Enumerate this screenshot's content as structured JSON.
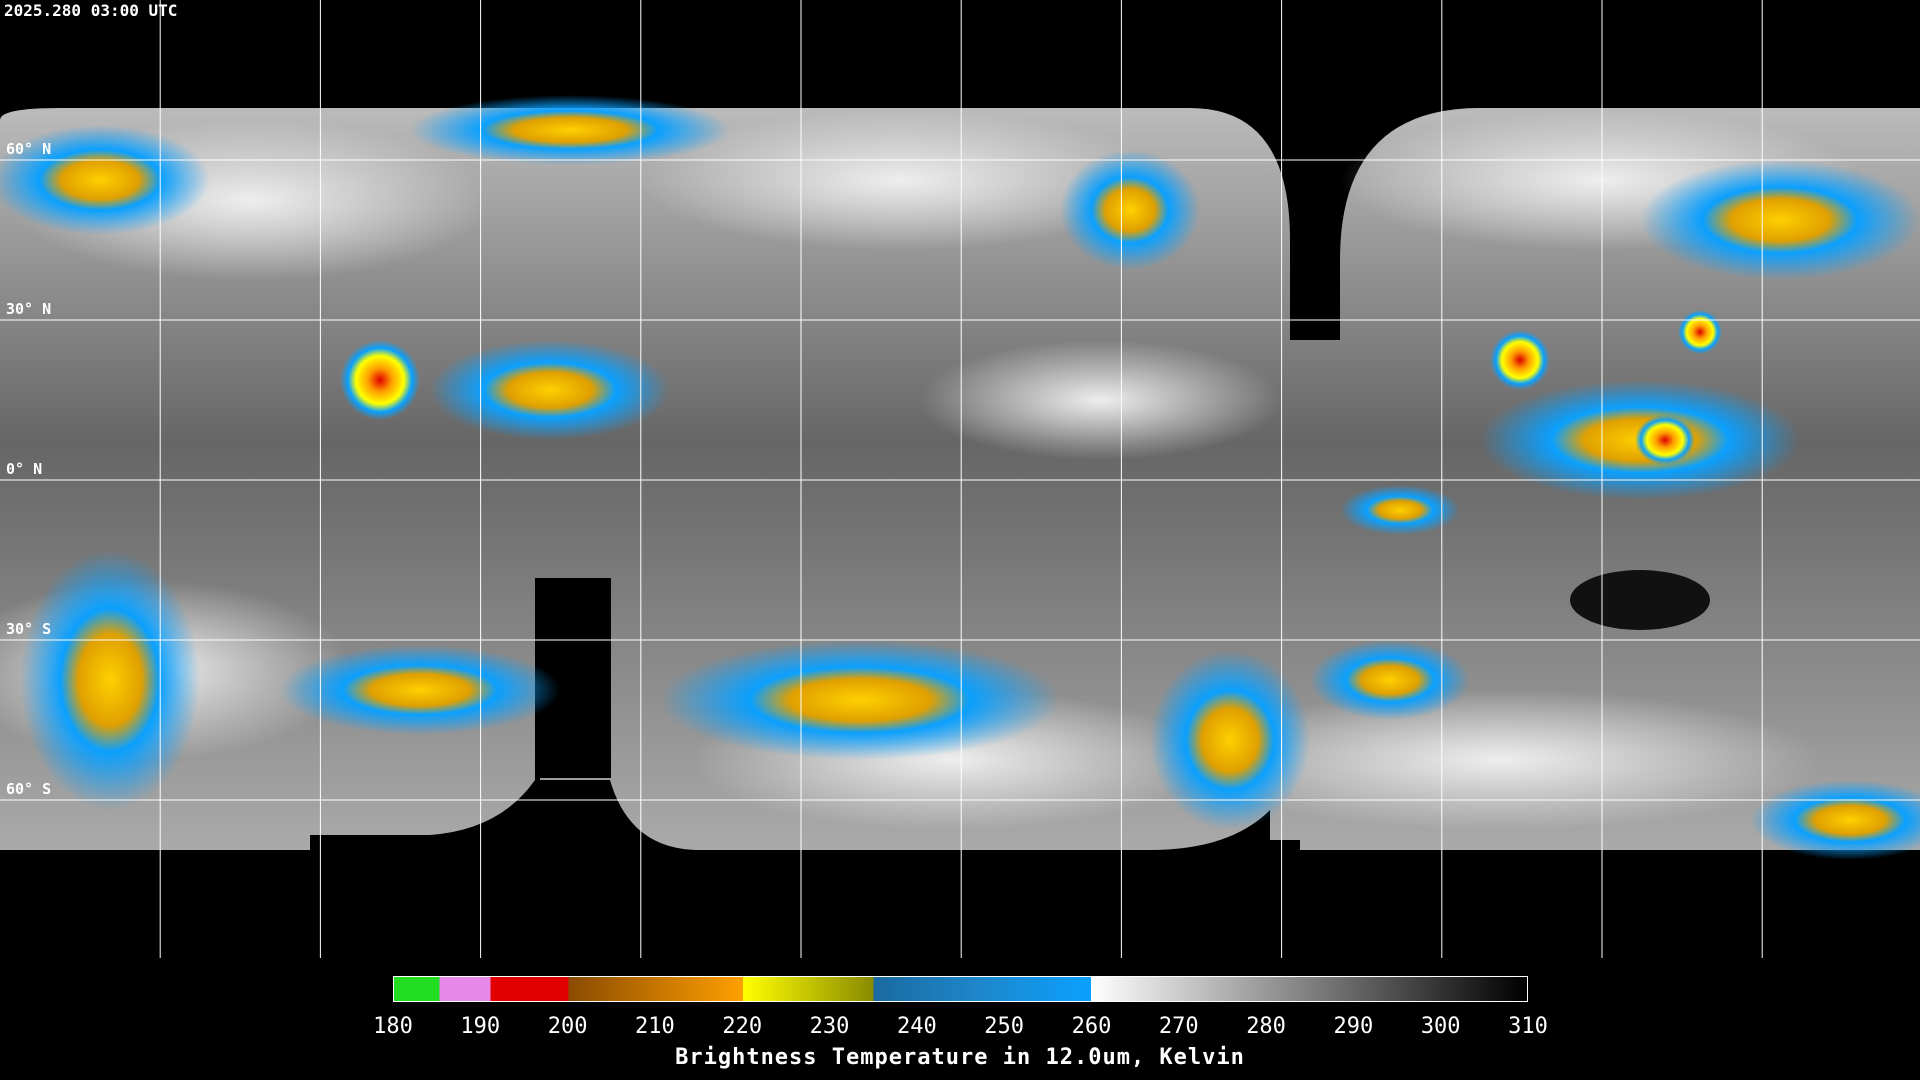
{
  "header": {
    "timestamp": "2025.280 03:00 UTC"
  },
  "map": {
    "latitude_labels": [
      "60° N",
      "30° N",
      "0° N",
      "30° S",
      "60° S"
    ]
  },
  "colorbar": {
    "ticks": [
      180,
      190,
      200,
      210,
      220,
      230,
      240,
      250,
      260,
      270,
      280,
      290,
      300,
      310
    ],
    "title": "Brightness Temperature in 12.0um, Kelvin"
  }
}
